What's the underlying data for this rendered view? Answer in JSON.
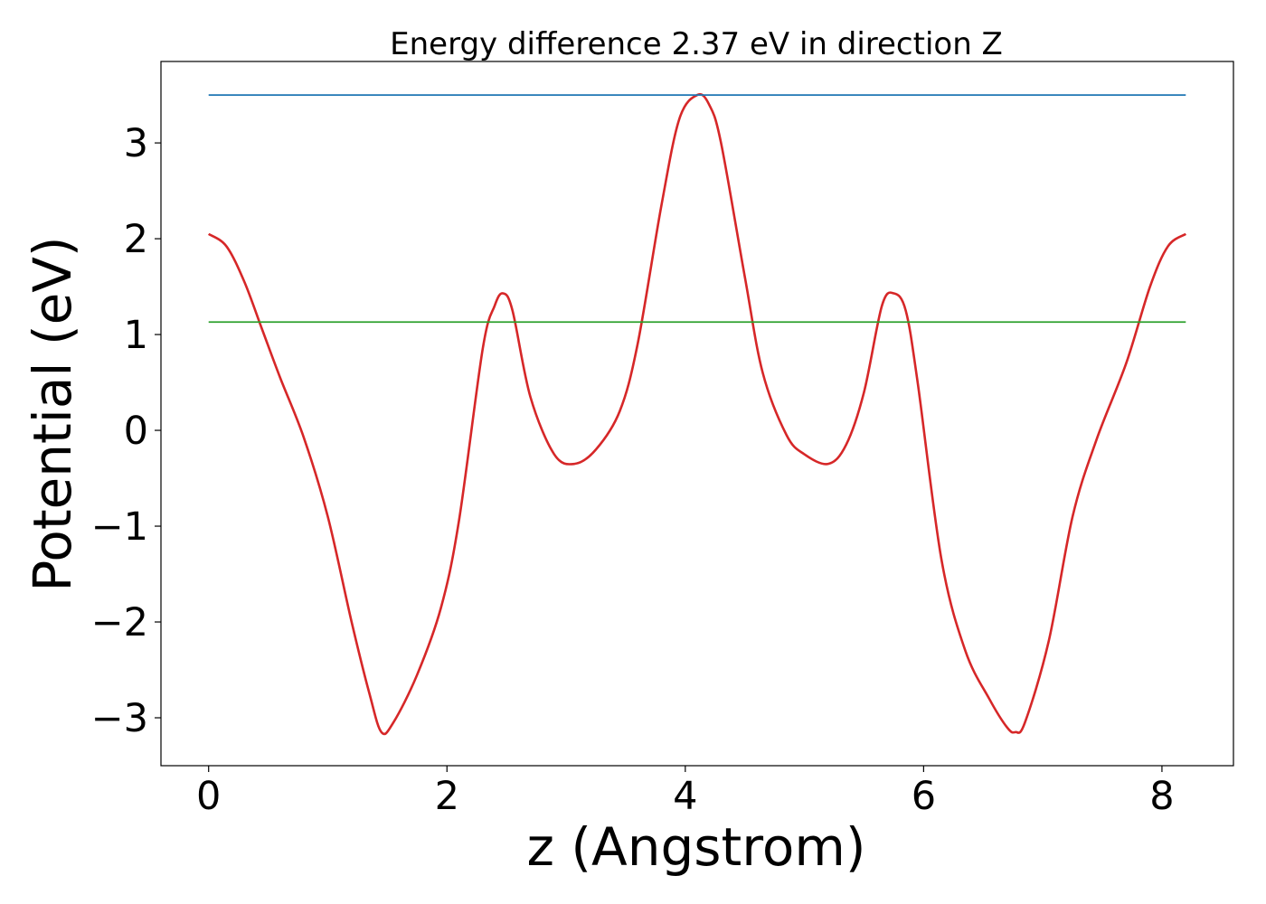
{
  "chart_data": {
    "type": "line",
    "title": "Energy difference 2.37 eV in direction Z",
    "xlabel": "z (Angstrom)",
    "ylabel": "Potential (eV)",
    "xlim": [
      -0.4,
      8.6
    ],
    "ylim": [
      -3.5,
      3.85
    ],
    "x_ticks": [
      0,
      2,
      4,
      6,
      8
    ],
    "x_tick_labels": [
      "0",
      "2",
      "4",
      "6",
      "8"
    ],
    "y_ticks": [
      -3,
      -2,
      -1,
      0,
      1,
      2,
      3
    ],
    "y_tick_labels": [
      "−3",
      "−2",
      "−1",
      "0",
      "1",
      "2",
      "3"
    ],
    "grid": false,
    "series": [
      {
        "color": "#d62728",
        "x": [
          0,
          0.15,
          0.3,
          0.45,
          0.6,
          0.8,
          1.0,
          1.2,
          1.35,
          1.45,
          1.55,
          1.75,
          1.95,
          2.1,
          2.3,
          2.4,
          2.47,
          2.55,
          2.7,
          2.9,
          3.07,
          3.25,
          3.45,
          3.6,
          3.8,
          3.95,
          4.1,
          4.2,
          4.3,
          4.5,
          4.65,
          4.85,
          5.0,
          5.2,
          5.35,
          5.5,
          5.65,
          5.75,
          5.85,
          5.95,
          6.15,
          6.35,
          6.55,
          6.7,
          6.77,
          6.85,
          7.05,
          7.25,
          7.45,
          7.7,
          7.9,
          8.05,
          8.2
        ],
        "values": [
          2.05,
          1.92,
          1.55,
          1.05,
          0.55,
          -0.08,
          -0.9,
          -2.0,
          -2.75,
          -3.15,
          -3.05,
          -2.55,
          -1.85,
          -0.95,
          0.85,
          1.3,
          1.43,
          1.25,
          0.35,
          -0.25,
          -0.35,
          -0.2,
          0.2,
          0.9,
          2.35,
          3.25,
          3.5,
          3.4,
          3.0,
          1.6,
          0.6,
          -0.05,
          -0.25,
          -0.35,
          -0.15,
          0.4,
          1.3,
          1.43,
          1.25,
          0.5,
          -1.35,
          -2.3,
          -2.8,
          -3.1,
          -3.15,
          -3.05,
          -2.2,
          -0.9,
          -0.1,
          0.7,
          1.5,
          1.92,
          2.05
        ]
      },
      {
        "color": "#1f77b4",
        "x": [
          0,
          8.2
        ],
        "values": [
          3.5,
          3.5
        ]
      },
      {
        "color": "#2ca02c",
        "x": [
          0,
          8.2
        ],
        "values": [
          1.13,
          1.13
        ]
      }
    ]
  }
}
